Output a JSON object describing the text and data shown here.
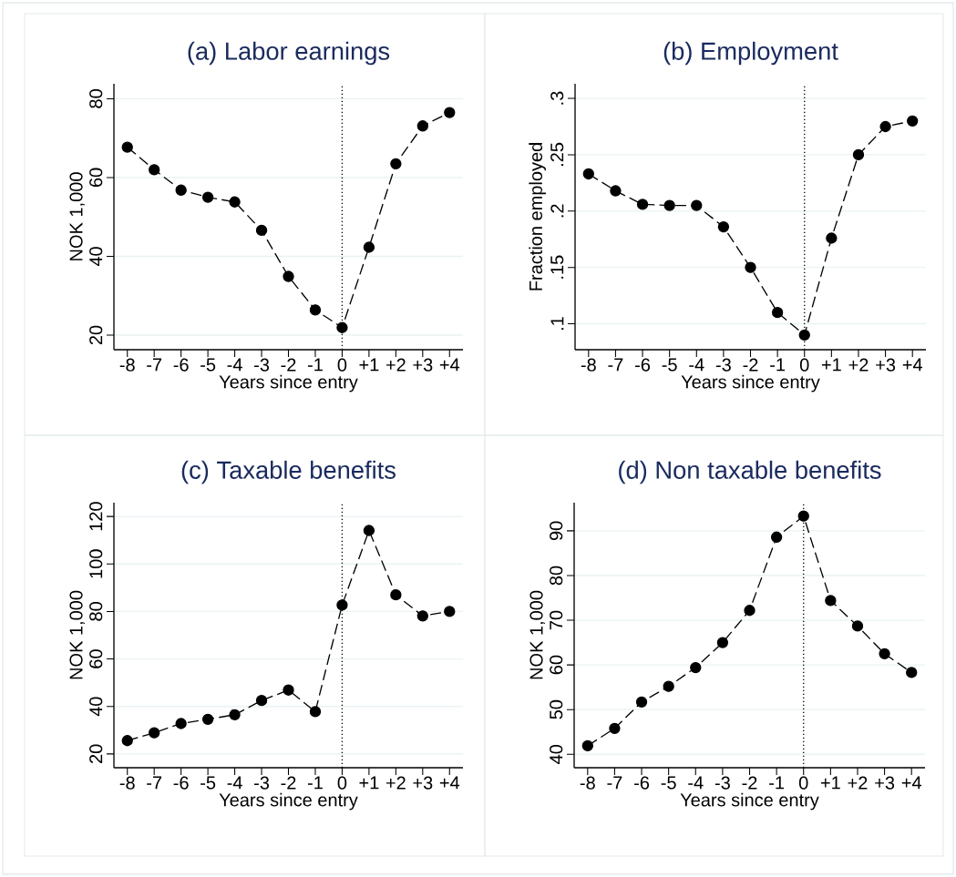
{
  "chart_data": [
    {
      "type": "line",
      "title": "(a) Labor earnings",
      "xlabel": "Years since entry",
      "ylabel": "NOK 1,000",
      "x": [
        -8,
        -7,
        -6,
        -5,
        -4,
        -3,
        -2,
        -1,
        0,
        1,
        2,
        3,
        4
      ],
      "series": [
        {
          "color": "#000000",
          "values": [
            67.7,
            62.0,
            56.8,
            55.0,
            53.8,
            46.6,
            34.9,
            26.4,
            21.9,
            42.3,
            63.5,
            73.1,
            76.5
          ]
        }
      ],
      "xlim": [
        -8.5,
        4.5
      ],
      "ylim": [
        16.3,
        83.8
      ],
      "xticks": [
        -8,
        -7,
        -6,
        -5,
        -4,
        -3,
        -2,
        -1,
        0,
        {
          "value": 1,
          "label": "+1"
        },
        {
          "value": 2,
          "label": "+2"
        },
        {
          "value": 3,
          "label": "+3"
        },
        {
          "value": 4,
          "label": "+4"
        }
      ],
      "yticks": [
        20,
        40,
        60,
        80
      ],
      "grid": "y",
      "marker": "circle",
      "line_style": "dashed",
      "ref_lines": [
        {
          "axis": "x",
          "value": 0,
          "line_style": "dotted"
        }
      ]
    },
    {
      "type": "line",
      "title": "(b) Employment",
      "xlabel": "Years since entry",
      "ylabel": "Fraction employed",
      "x": [
        -8,
        -7,
        -6,
        -5,
        -4,
        -3,
        -2,
        -1,
        0,
        1,
        2,
        3,
        4
      ],
      "series": [
        {
          "color": "#000000",
          "values": [
            0.233,
            0.218,
            0.206,
            0.205,
            0.205,
            0.186,
            0.15,
            0.11,
            0.09,
            0.176,
            0.25,
            0.275,
            0.28
          ]
        }
      ],
      "xlim": [
        -8.5,
        4.5
      ],
      "ylim": [
        0.077,
        0.313
      ],
      "xticks": [
        -8,
        -7,
        -6,
        -5,
        -4,
        -3,
        -2,
        -1,
        0,
        {
          "value": 1,
          "label": "+1"
        },
        {
          "value": 2,
          "label": "+2"
        },
        {
          "value": 3,
          "label": "+3"
        },
        {
          "value": 4,
          "label": "+4"
        }
      ],
      "yticks": [
        {
          "value": 0.1,
          "label": ".1"
        },
        {
          "value": 0.15,
          "label": ".15"
        },
        {
          "value": 0.2,
          "label": ".2"
        },
        {
          "value": 0.25,
          "label": ".25"
        },
        {
          "value": 0.3,
          "label": ".3"
        }
      ],
      "grid": "y",
      "marker": "circle",
      "line_style": "dashed",
      "ref_lines": [
        {
          "axis": "x",
          "value": 0,
          "line_style": "dotted"
        }
      ]
    },
    {
      "type": "line",
      "title": "(c) Taxable benefits",
      "xlabel": "Years since entry",
      "ylabel": "NOK 1,000",
      "x": [
        -8,
        -7,
        -6,
        -5,
        -4,
        -3,
        -2,
        -1,
        0,
        1,
        2,
        3,
        4
      ],
      "series": [
        {
          "color": "#000000",
          "values": [
            25.6,
            28.9,
            32.8,
            34.6,
            36.5,
            42.5,
            46.9,
            37.8,
            82.7,
            114.1,
            87.0,
            78.1,
            80.0
          ]
        }
      ],
      "xlim": [
        -8.5,
        4.5
      ],
      "ylim": [
        14.2,
        125.8
      ],
      "xticks": [
        -8,
        -7,
        -6,
        -5,
        -4,
        -3,
        -2,
        -1,
        0,
        {
          "value": 1,
          "label": "+1"
        },
        {
          "value": 2,
          "label": "+2"
        },
        {
          "value": 3,
          "label": "+3"
        },
        {
          "value": 4,
          "label": "+4"
        }
      ],
      "yticks": [
        20,
        40,
        60,
        80,
        100,
        120
      ],
      "grid": "y",
      "marker": "circle",
      "line_style": "dashed",
      "ref_lines": [
        {
          "axis": "x",
          "value": 0,
          "line_style": "dotted"
        }
      ]
    },
    {
      "type": "line",
      "title": "(d) Non taxable benefits",
      "xlabel": "Years since entry",
      "ylabel": "NOK 1,000",
      "x": [
        -8,
        -7,
        -6,
        -5,
        -4,
        -3,
        -2,
        -1,
        0,
        1,
        2,
        3,
        4
      ],
      "series": [
        {
          "color": "#000000",
          "values": [
            41.9,
            45.8,
            51.7,
            55.2,
            59.4,
            65.0,
            72.2,
            88.6,
            93.3,
            74.4,
            68.7,
            62.5,
            58.3
          ]
        }
      ],
      "xlim": [
        -8.5,
        4.5
      ],
      "ylim": [
        37.0,
        96.3
      ],
      "xticks": [
        -8,
        -7,
        -6,
        -5,
        -4,
        -3,
        -2,
        -1,
        0,
        {
          "value": 1,
          "label": "+1"
        },
        {
          "value": 2,
          "label": "+2"
        },
        {
          "value": 3,
          "label": "+3"
        },
        {
          "value": 4,
          "label": "+4"
        }
      ],
      "yticks": [
        40,
        50,
        60,
        70,
        80,
        90
      ],
      "grid": "y",
      "marker": "circle",
      "line_style": "dashed",
      "ref_lines": [
        {
          "axis": "x",
          "value": 0,
          "line_style": "dotted"
        }
      ]
    }
  ]
}
